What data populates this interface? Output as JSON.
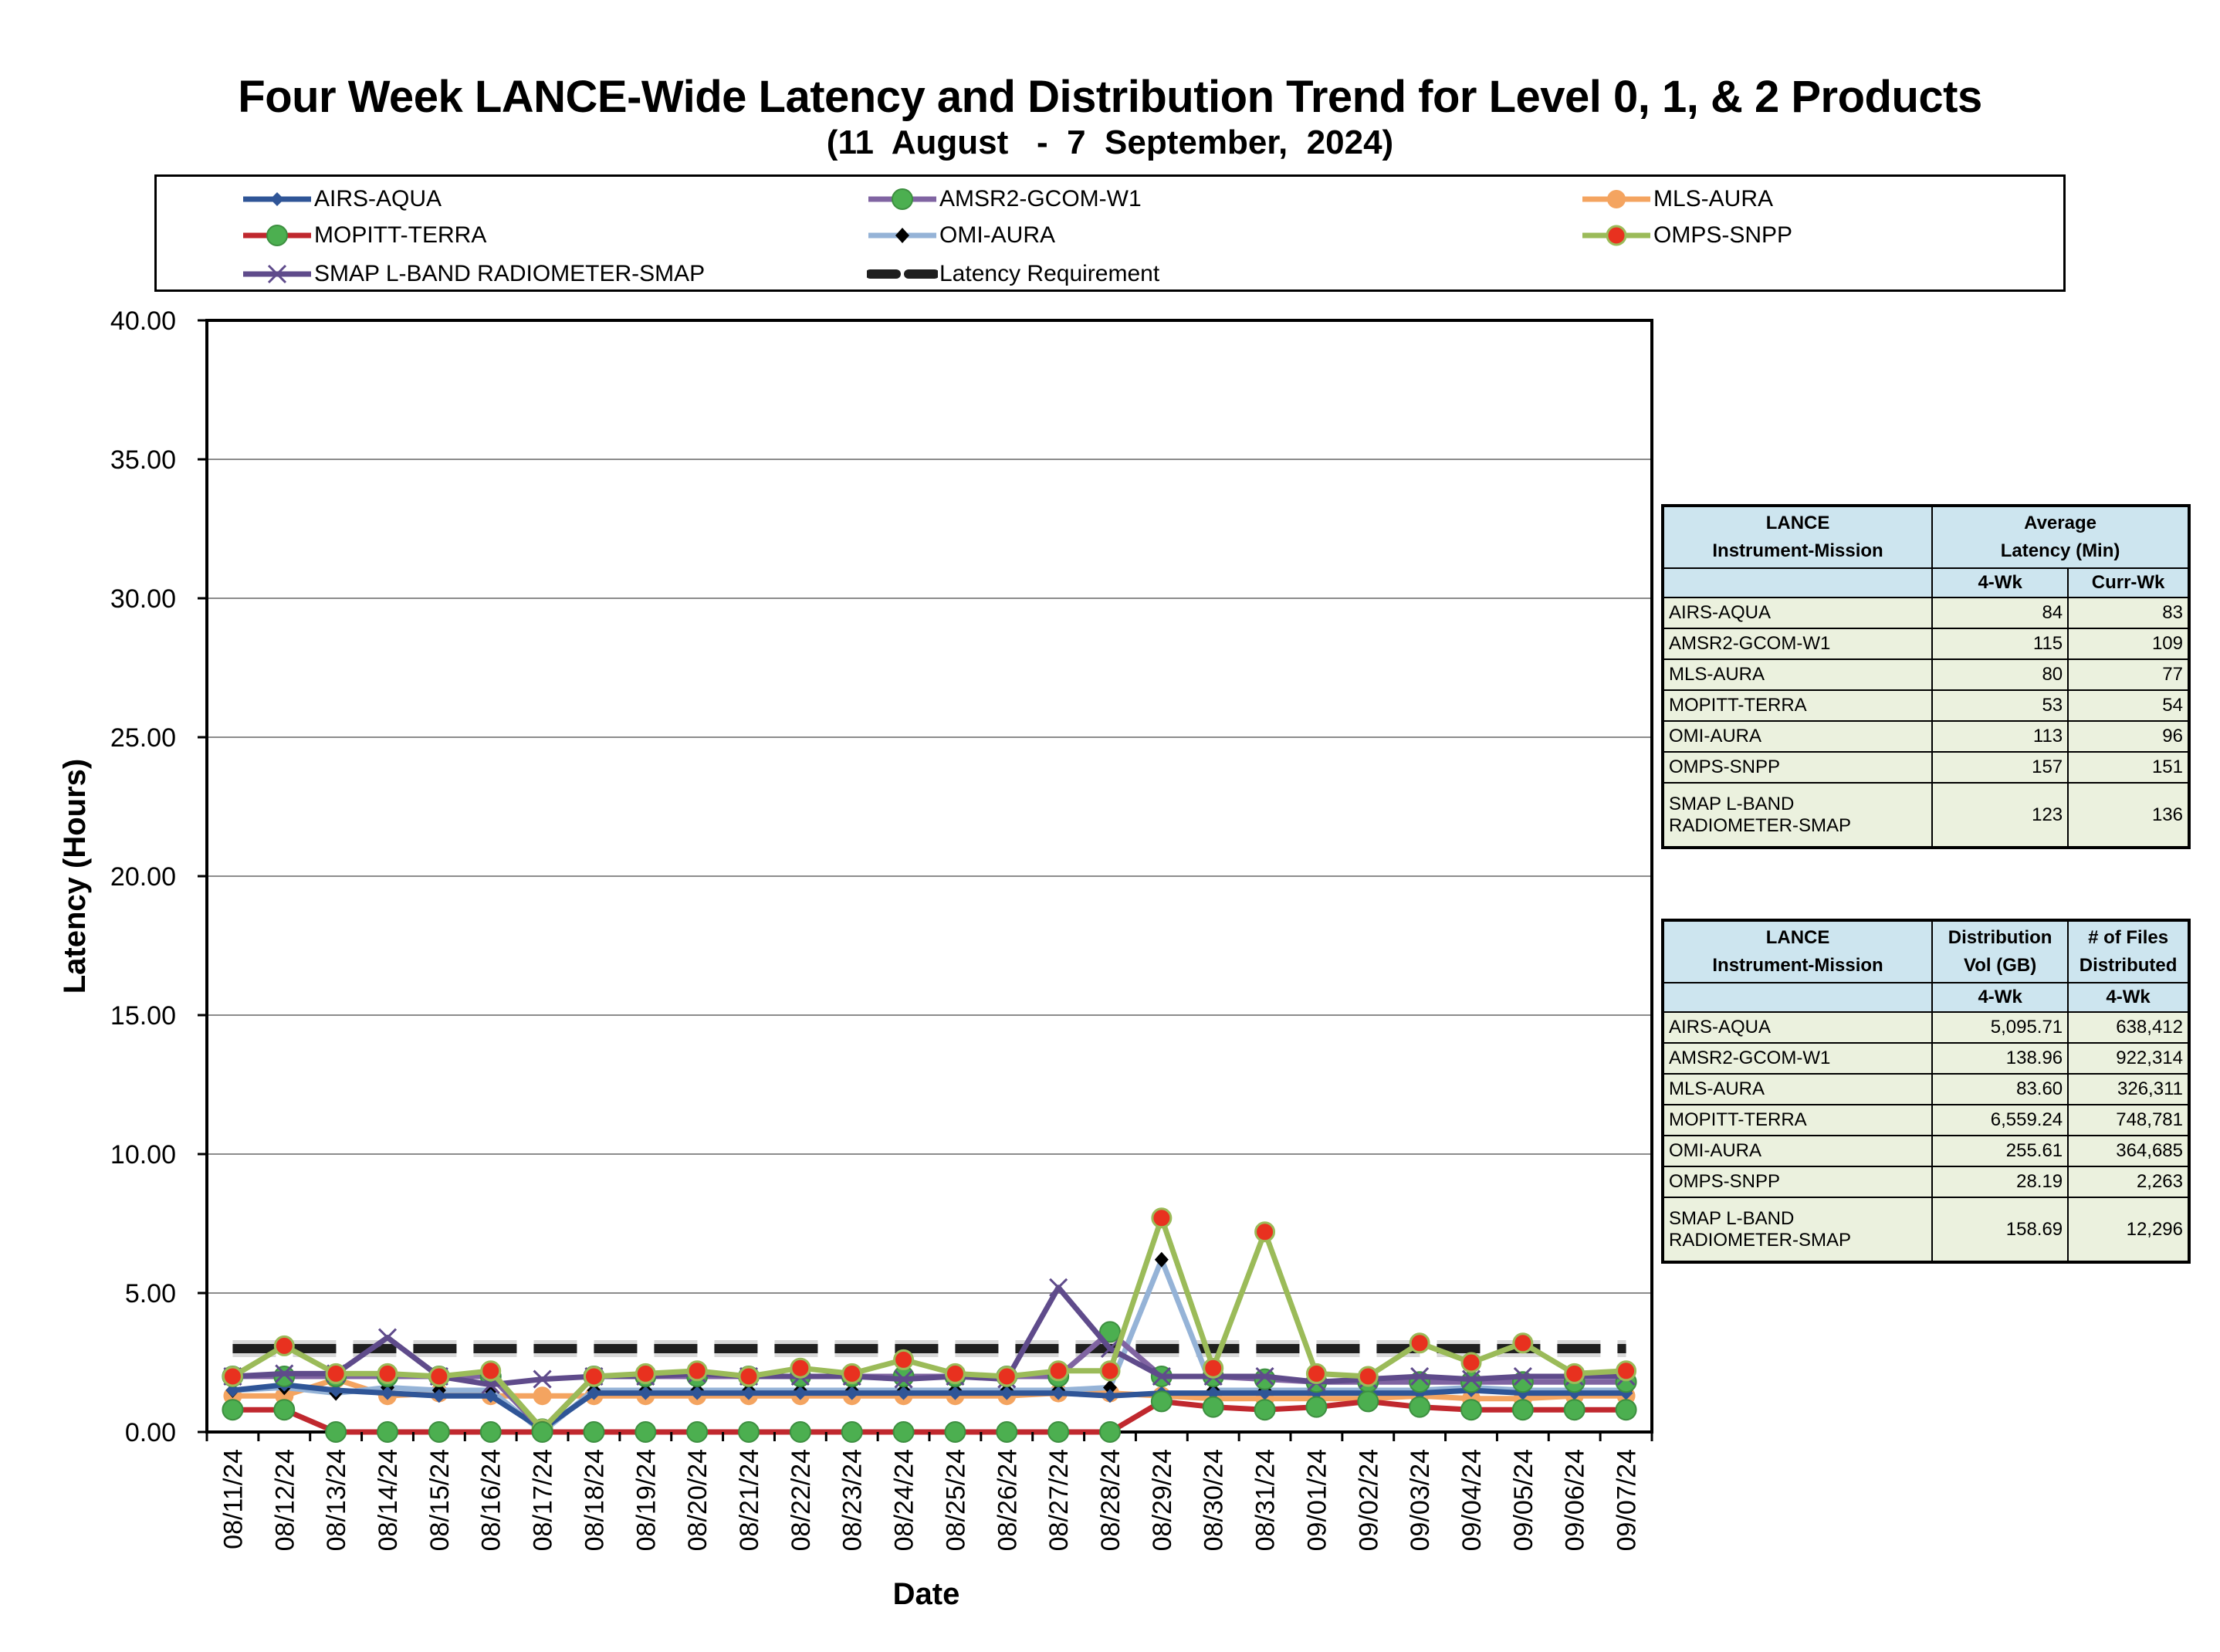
{
  "chart_data": {
    "type": "line",
    "title": "Four Week LANCE-Wide Latency and Distribution Trend for Level 0, 1, & 2 Products",
    "subtitle": "(11  August   -  7  September,  2024)",
    "xlabel": "Date",
    "ylabel": "Latency (Hours)",
    "ylim": [
      0,
      40
    ],
    "yticks": [
      "0.00",
      "5.00",
      "10.00",
      "15.00",
      "20.00",
      "25.00",
      "30.00",
      "35.00",
      "40.00"
    ],
    "grid": true,
    "legend_placement": "top",
    "categories": [
      "08/11/24",
      "08/12/24",
      "08/13/24",
      "08/14/24",
      "08/15/24",
      "08/16/24",
      "08/17/24",
      "08/18/24",
      "08/19/24",
      "08/20/24",
      "08/21/24",
      "08/22/24",
      "08/23/24",
      "08/24/24",
      "08/25/24",
      "08/26/24",
      "08/27/24",
      "08/28/24",
      "08/29/24",
      "08/30/24",
      "08/31/24",
      "09/01/24",
      "09/02/24",
      "09/03/24",
      "09/04/24",
      "09/05/24",
      "09/06/24",
      "09/07/24"
    ],
    "series": [
      {
        "name": "AIRS-AQUA",
        "color": "#2f5597",
        "marker": "diamond",
        "values": [
          1.5,
          1.7,
          1.5,
          1.4,
          1.3,
          1.3,
          0.1,
          1.4,
          1.4,
          1.4,
          1.4,
          1.4,
          1.4,
          1.4,
          1.4,
          1.4,
          1.4,
          1.3,
          1.4,
          1.4,
          1.4,
          1.4,
          1.4,
          1.4,
          1.5,
          1.4,
          1.4,
          1.4
        ]
      },
      {
        "name": "AMSR2-GCOM-W1",
        "color": "#8064a2",
        "marker": "circle-green",
        "values": [
          2.0,
          2.0,
          2.0,
          2.0,
          2.0,
          2.0,
          0.1,
          2.0,
          2.0,
          2.0,
          2.0,
          2.0,
          2.0,
          2.0,
          2.0,
          2.0,
          2.0,
          3.6,
          2.0,
          2.0,
          1.9,
          1.8,
          1.8,
          1.8,
          1.8,
          1.8,
          1.8,
          1.8
        ]
      },
      {
        "name": "MLS-AURA",
        "color": "#f4a460",
        "marker": "circle-orange",
        "values": [
          1.3,
          1.3,
          1.9,
          1.3,
          1.4,
          1.3,
          1.3,
          1.3,
          1.3,
          1.3,
          1.3,
          1.3,
          1.3,
          1.3,
          1.3,
          1.3,
          1.4,
          1.4,
          1.3,
          1.2,
          1.2,
          1.2,
          1.2,
          1.3,
          1.2,
          1.2,
          1.3,
          1.3
        ]
      },
      {
        "name": "MOPITT-TERRA",
        "color": "#c0282e",
        "marker": "circle-green",
        "values": [
          0.8,
          0.8,
          0.0,
          0.0,
          0.0,
          0.0,
          0.0,
          0.0,
          0.0,
          0.0,
          0.0,
          0.0,
          0.0,
          0.0,
          0.0,
          0.0,
          0.0,
          0.0,
          1.1,
          0.9,
          0.8,
          0.9,
          1.1,
          0.9,
          0.8,
          0.8,
          0.8,
          0.8
        ]
      },
      {
        "name": "OMI-AURA",
        "color": "#95b3d7",
        "marker": "diamond-black",
        "values": [
          1.5,
          1.6,
          1.4,
          1.6,
          1.5,
          1.5,
          0.0,
          1.5,
          1.5,
          1.5,
          1.5,
          1.5,
          1.5,
          1.5,
          1.5,
          1.5,
          1.5,
          1.6,
          6.2,
          1.5,
          1.5,
          1.5,
          1.5,
          1.5,
          1.6,
          1.5,
          1.5,
          1.5
        ]
      },
      {
        "name": "OMPS-SNPP",
        "color": "#9bbb59",
        "marker": "circle-red",
        "values": [
          2.0,
          3.1,
          2.1,
          2.1,
          2.0,
          2.2,
          0.1,
          2.0,
          2.1,
          2.2,
          2.0,
          2.3,
          2.1,
          2.6,
          2.1,
          2.0,
          2.2,
          2.2,
          7.7,
          2.3,
          7.2,
          2.1,
          2.0,
          3.2,
          2.5,
          3.2,
          2.1,
          2.2
        ]
      },
      {
        "name": "SMAP L-BAND RADIOMETER-SMAP",
        "color": "#5f4b8b",
        "marker": "x",
        "values": [
          2.0,
          2.1,
          2.1,
          3.4,
          2.0,
          1.7,
          1.9,
          2.0,
          2.0,
          2.1,
          2.0,
          2.0,
          2.0,
          1.9,
          2.0,
          1.9,
          5.2,
          3.0,
          2.0,
          2.0,
          2.0,
          1.8,
          1.9,
          2.0,
          1.9,
          2.0,
          2.0,
          2.0
        ]
      },
      {
        "name": "Latency Requirement",
        "color": "#1f1f1f",
        "marker": "none",
        "dashed": true,
        "values": [
          3,
          3,
          3,
          3,
          3,
          3,
          3,
          3,
          3,
          3,
          3,
          3,
          3,
          3,
          3,
          3,
          3,
          3,
          3,
          3,
          3,
          3,
          3,
          3,
          3,
          3,
          3,
          3
        ]
      }
    ]
  },
  "latency_table": {
    "header_mission": [
      "LANCE",
      "Instrument-Mission"
    ],
    "header_latency": [
      "Average",
      "Latency (Min)"
    ],
    "sub_4wk": "4-Wk",
    "sub_currwk": "Curr-Wk",
    "rows": [
      {
        "name": "AIRS-AQUA",
        "four_wk": "84",
        "curr_wk": "83"
      },
      {
        "name": "AMSR2-GCOM-W1",
        "four_wk": "115",
        "curr_wk": "109"
      },
      {
        "name": "MLS-AURA",
        "four_wk": "80",
        "curr_wk": "77"
      },
      {
        "name": "MOPITT-TERRA",
        "four_wk": "53",
        "curr_wk": "54"
      },
      {
        "name": "OMI-AURA",
        "four_wk": "113",
        "curr_wk": "96"
      },
      {
        "name": "OMPS-SNPP",
        "four_wk": "157",
        "curr_wk": "151"
      },
      {
        "name": "SMAP L-BAND RADIOMETER-SMAP",
        "four_wk": "123",
        "curr_wk": "136"
      }
    ]
  },
  "distribution_table": {
    "header_mission": [
      "LANCE",
      "Instrument-Mission"
    ],
    "header_vol": [
      "Distribution",
      "Vol (GB)"
    ],
    "header_files": [
      "# of Files",
      "Distributed"
    ],
    "sub_vol": "4-Wk",
    "sub_files": "4-Wk",
    "rows": [
      {
        "name": "AIRS-AQUA",
        "vol": "5,095.71",
        "files": "638,412"
      },
      {
        "name": "AMSR2-GCOM-W1",
        "vol": "138.96",
        "files": "922,314"
      },
      {
        "name": "MLS-AURA",
        "vol": "83.60",
        "files": "326,311"
      },
      {
        "name": "MOPITT-TERRA",
        "vol": "6,559.24",
        "files": "748,781"
      },
      {
        "name": "OMI-AURA",
        "vol": "255.61",
        "files": "364,685"
      },
      {
        "name": "OMPS-SNPP",
        "vol": "28.19",
        "files": "2,263"
      },
      {
        "name": "SMAP L-BAND RADIOMETER-SMAP",
        "vol": "158.69",
        "files": "12,296"
      }
    ]
  }
}
